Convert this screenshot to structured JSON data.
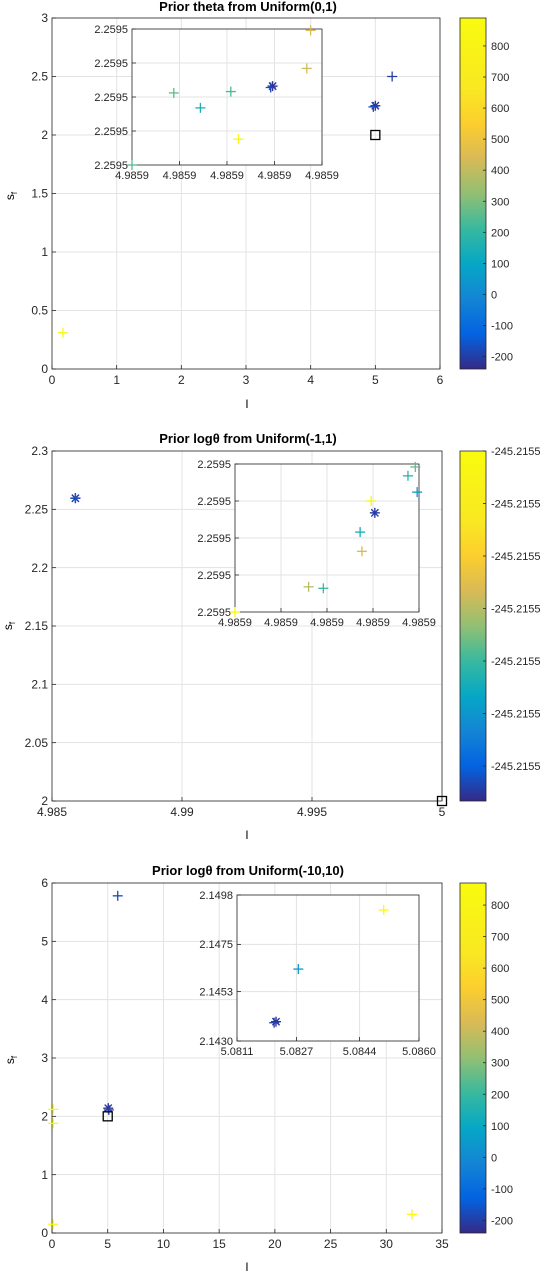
{
  "chart_data": [
    {
      "type": "scatter",
      "title": "Prior theta from Uniform(0,1)",
      "xlabel": "l",
      "ylabel": "s_f",
      "xlim": [
        0,
        6
      ],
      "ylim": [
        0,
        3
      ],
      "xticks": [
        0,
        1,
        2,
        3,
        4,
        5,
        6
      ],
      "xticklabels": [
        "0",
        "1",
        "2",
        "3",
        "4",
        "5",
        "6"
      ],
      "yticks": [
        0,
        0.5,
        1,
        1.5,
        2,
        2.5,
        3
      ],
      "yticklabels": [
        "0",
        "0.5",
        "1",
        "1.5",
        "2",
        "2.5",
        "3"
      ],
      "grid": true,
      "colorbar": {
        "limits": [
          -240,
          890
        ],
        "ticks": [
          -200,
          -100,
          0,
          100,
          200,
          300,
          400,
          500,
          600,
          700,
          800
        ],
        "ticklabels": [
          "-200",
          "-100",
          "0",
          "100",
          "200",
          "300",
          "400",
          "500",
          "600",
          "700",
          "800"
        ]
      },
      "points": [
        {
          "x": 0.17,
          "y": 0.31,
          "marker": "+",
          "c": 870
        },
        {
          "x": 5.0,
          "y": 2.25,
          "marker": "*",
          "c": -220
        },
        {
          "x": 4.97,
          "y": 2.24,
          "marker": "+",
          "c": -160
        },
        {
          "x": 5.26,
          "y": 2.5,
          "marker": "+",
          "c": -200
        },
        {
          "x": 5.0,
          "y": 2.0,
          "marker": "square",
          "c": null
        }
      ],
      "inset": {
        "xlim": [
          0,
          1
        ],
        "ylim": [
          0,
          1
        ],
        "xticks": [
          0,
          0.25,
          0.5,
          0.75,
          1
        ],
        "xticklabels": [
          "4.9859",
          "4.9859",
          "4.9859",
          "4.9859",
          "4.9859"
        ],
        "yticks": [
          0,
          0.25,
          0.5,
          0.75,
          1
        ],
        "yticklabels": [
          "2.2595",
          "2.2595",
          "2.2595",
          "2.2595",
          "2.2595"
        ],
        "grid": true,
        "points": [
          {
            "x": 0.0,
            "y": 0.0,
            "marker": "+",
            "c": 250
          },
          {
            "x": 0.22,
            "y": 0.53,
            "marker": "+",
            "c": 260
          },
          {
            "x": 0.36,
            "y": 0.42,
            "marker": "+",
            "c": 150
          },
          {
            "x": 0.52,
            "y": 0.54,
            "marker": "+",
            "c": 230
          },
          {
            "x": 0.56,
            "y": 0.19,
            "marker": "+",
            "c": 850
          },
          {
            "x": 0.74,
            "y": 0.58,
            "marker": "*",
            "c": -220
          },
          {
            "x": 0.73,
            "y": 0.57,
            "marker": "+",
            "c": -180
          },
          {
            "x": 0.92,
            "y": 0.71,
            "marker": "+",
            "c": 420
          },
          {
            "x": 0.94,
            "y": 0.99,
            "marker": "+",
            "c": 440
          }
        ]
      }
    },
    {
      "type": "scatter",
      "title": "Prior logθ from Uniform(-1,1)",
      "xlabel": "l",
      "ylabel": "s_f",
      "xlim": [
        4.985,
        5.0
      ],
      "ylim": [
        2.0,
        2.3
      ],
      "xticks": [
        4.985,
        4.99,
        4.995,
        5.0
      ],
      "xticklabels": [
        "4.985",
        "4.99",
        "4.995",
        "5"
      ],
      "yticks": [
        2.0,
        2.05,
        2.1,
        2.15,
        2.2,
        2.25,
        2.3
      ],
      "yticklabels": [
        "2",
        "2.05",
        "2.1",
        "2.15",
        "2.2",
        "2.25",
        "2.3"
      ],
      "grid": true,
      "colorbar": {
        "limits": [
          0,
          1
        ],
        "ticks": [
          0.1,
          0.25,
          0.4,
          0.55,
          0.7,
          0.85,
          1.0
        ],
        "ticklabels": [
          "-245.2155",
          "-245.2155",
          "-245.2155",
          "-245.2155",
          "-245.2155",
          "-245.2155",
          "-245.2155"
        ]
      },
      "points": [
        {
          "x": 4.9859,
          "y": 2.2595,
          "marker": "*",
          "c": 0.03
        },
        {
          "x": 4.9859,
          "y": 2.2597,
          "marker": "+",
          "c": 0.08
        },
        {
          "x": 5.0,
          "y": 2.0,
          "marker": "square",
          "c": null
        }
      ],
      "inset": {
        "xlim": [
          0,
          1
        ],
        "ylim": [
          0,
          1
        ],
        "xticks": [
          0,
          0.25,
          0.5,
          0.75,
          1
        ],
        "xticklabels": [
          "4.9859",
          "4.9859",
          "4.9859",
          "4.9859",
          "4.9859"
        ],
        "yticks": [
          0,
          0.25,
          0.5,
          0.75,
          1
        ],
        "yticklabels": [
          "2.2595",
          "2.2595",
          "2.2595",
          "2.2595",
          "2.2595"
        ],
        "grid": true,
        "points": [
          {
            "x": 0.0,
            "y": 0.0,
            "marker": "+",
            "c": 0.97
          },
          {
            "x": 0.4,
            "y": 0.17,
            "marker": "+",
            "c": 0.55
          },
          {
            "x": 0.48,
            "y": 0.16,
            "marker": "+",
            "c": 0.4
          },
          {
            "x": 0.68,
            "y": 0.54,
            "marker": "+",
            "c": 0.33
          },
          {
            "x": 0.69,
            "y": 0.41,
            "marker": "+",
            "c": 0.6
          },
          {
            "x": 0.74,
            "y": 0.75,
            "marker": "+",
            "c": 0.97
          },
          {
            "x": 0.76,
            "y": 0.67,
            "marker": "*",
            "c": 0.03
          },
          {
            "x": 0.94,
            "y": 0.92,
            "marker": "+",
            "c": 0.37
          },
          {
            "x": 0.98,
            "y": 0.98,
            "marker": "+",
            "c": 0.45
          },
          {
            "x": 0.99,
            "y": 0.81,
            "marker": "+",
            "c": 0.25
          }
        ]
      }
    },
    {
      "type": "scatter",
      "title": "Prior logθ from Uniform(-10,10)",
      "xlabel": "l",
      "ylabel": "s_f",
      "xlim": [
        0,
        35
      ],
      "ylim": [
        0,
        6
      ],
      "xticks": [
        0,
        5,
        10,
        15,
        20,
        25,
        30,
        35
      ],
      "xticklabels": [
        "0",
        "5",
        "10",
        "15",
        "20",
        "25",
        "30",
        "35"
      ],
      "yticks": [
        0,
        1,
        2,
        3,
        4,
        5,
        6
      ],
      "yticklabels": [
        "0",
        "1",
        "2",
        "3",
        "4",
        "5",
        "6"
      ],
      "grid": true,
      "colorbar": {
        "limits": [
          -240,
          870
        ],
        "ticks": [
          -200,
          -100,
          0,
          100,
          200,
          300,
          400,
          500,
          600,
          700,
          800
        ],
        "ticklabels": [
          "-200",
          "-100",
          "0",
          "100",
          "200",
          "300",
          "400",
          "500",
          "600",
          "700",
          "800"
        ]
      },
      "points": [
        {
          "x": 0.1,
          "y": 2.12,
          "marker": "+",
          "c": 860
        },
        {
          "x": 0.1,
          "y": 1.88,
          "marker": "+",
          "c": 860
        },
        {
          "x": 0.1,
          "y": 0.15,
          "marker": "+",
          "c": 860
        },
        {
          "x": 5.05,
          "y": 2.14,
          "marker": "*",
          "c": -220
        },
        {
          "x": 5.1,
          "y": 2.11,
          "marker": "+",
          "c": -200
        },
        {
          "x": 5.9,
          "y": 5.78,
          "marker": "+",
          "c": -180
        },
        {
          "x": 32.3,
          "y": 0.32,
          "marker": "+",
          "c": 850
        },
        {
          "x": 5.0,
          "y": 2.0,
          "marker": "square",
          "c": null
        }
      ],
      "inset": {
        "xlim": [
          5.0811,
          5.086
        ],
        "ylim": [
          2.143,
          2.1498
        ],
        "xticks": [
          5.0811,
          5.0827,
          5.0844,
          5.086
        ],
        "xticklabels": [
          "5.0811",
          "5.0827",
          "5.0844",
          "5.0860"
        ],
        "yticks": [
          2.143,
          2.1453,
          2.1475,
          2.1498
        ],
        "yticklabels": [
          "2.1430",
          "2.1453",
          "2.1475",
          "2.1498"
        ],
        "grid": true,
        "points": [
          {
            "x": 5.08215,
            "y": 2.1439,
            "marker": "*",
            "c": -220
          },
          {
            "x": 5.0821,
            "y": 2.14385,
            "marker": "+",
            "c": -200
          },
          {
            "x": 5.08275,
            "y": 2.14635,
            "marker": "+",
            "c": 40
          },
          {
            "x": 5.08505,
            "y": 2.1491,
            "marker": "+",
            "c": 860
          }
        ]
      }
    }
  ]
}
